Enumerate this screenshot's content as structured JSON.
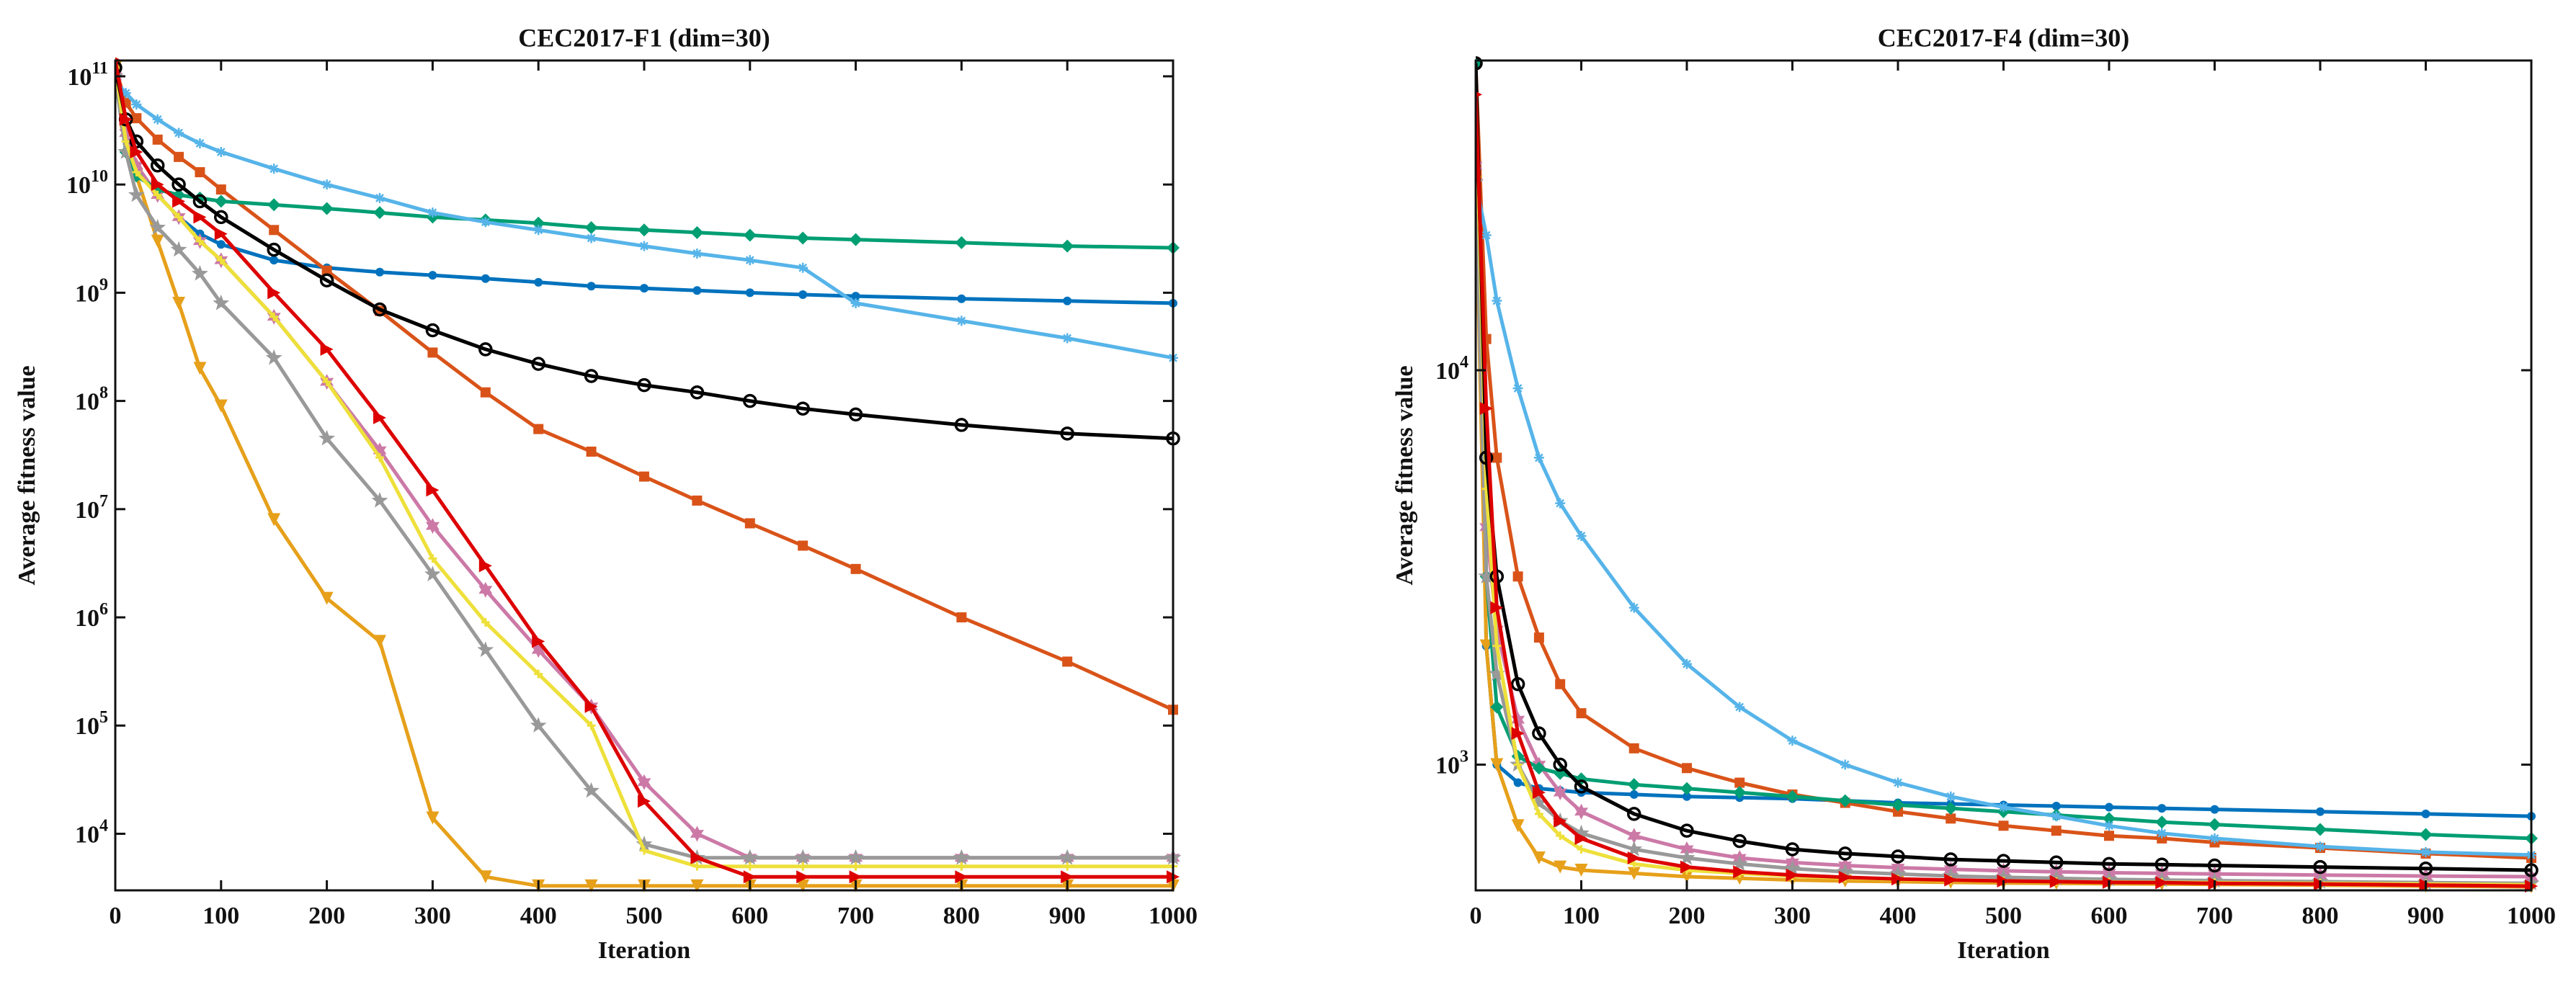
{
  "chart_data": [
    {
      "type": "line",
      "title": "CEC2017-F1 (dim=30)",
      "xlabel": "Iteration",
      "ylabel": "Average fitness value",
      "log_y": true,
      "x": [
        0,
        10,
        20,
        40,
        60,
        80,
        100,
        150,
        200,
        250,
        300,
        350,
        400,
        450,
        500,
        550,
        600,
        650,
        700,
        800,
        900,
        1000
      ],
      "xlim": [
        0,
        1000
      ],
      "xticks": [
        0,
        100,
        200,
        300,
        400,
        500,
        600,
        700,
        800,
        900,
        1000
      ],
      "ylim": [
        3000,
        140000000000
      ],
      "yticks": [
        {
          "value": 10000,
          "label": "10^4"
        },
        {
          "value": 100000,
          "label": "10^5"
        },
        {
          "value": 1000000,
          "label": "10^6"
        },
        {
          "value": 10000000,
          "label": "10^7"
        },
        {
          "value": 100000000,
          "label": "10^8"
        },
        {
          "value": 1000000000,
          "label": "10^9"
        },
        {
          "value": 10000000000,
          "label": "10^10"
        },
        {
          "value": 100000000000,
          "label": "10^11"
        }
      ],
      "series": [
        {
          "color": "#0072BD",
          "marker": "dot",
          "values": [
            120000000000.0,
            30000000000.0,
            15000000000.0,
            8000000000.0,
            5000000000.0,
            3500000000.0,
            2800000000.0,
            2000000000.0,
            1700000000.0,
            1550000000.0,
            1450000000.0,
            1350000000.0,
            1250000000.0,
            1150000000.0,
            1100000000.0,
            1050000000.0,
            1000000000.0,
            960000000.0,
            930000000.0,
            880000000.0,
            840000000.0,
            800000000.0
          ]
        },
        {
          "color": "#D95319",
          "marker": "square",
          "values": [
            120000000000.0,
            57000000000.0,
            41000000000.0,
            26000000000.0,
            18000000000.0,
            13000000000.0,
            9000000000.0,
            3800000000.0,
            1600000000.0,
            680000000.0,
            280000000.0,
            120000000.0,
            55000000.0,
            34000000.0,
            20000000.0,
            12000000.0,
            7400000.0,
            4600000.0,
            2800000.0,
            1000000.0,
            390000.0,
            140000.0
          ]
        },
        {
          "color": "#E6A01A",
          "marker": "triangle-down",
          "values": [
            120000000000.0,
            30000000000.0,
            12000000000.0,
            3000000000.0,
            800000000.0,
            200000000.0,
            90000000.0,
            8000000.0,
            1500000.0,
            600000.0,
            14000.0,
            4000,
            3300,
            3300,
            3300,
            3300,
            3300,
            3300,
            3300,
            3300,
            3300,
            3300
          ]
        },
        {
          "color": "#CC79A7",
          "marker": "hexagram",
          "values": [
            100000000000.0,
            30000000000.0,
            15000000000.0,
            8000000000.0,
            5000000000.0,
            3000000000.0,
            2000000000.0,
            600000000.0,
            150000000.0,
            35000000.0,
            7000000.0,
            1800000.0,
            500000.0,
            150000.0,
            30000.0,
            10000.0,
            6000,
            6000,
            6000,
            6000,
            6000,
            6000
          ]
        },
        {
          "color": "#009E73",
          "marker": "diamond",
          "values": [
            100000000000.0,
            20000000000.0,
            12000000000.0,
            9000000000.0,
            8000000000.0,
            7500000000.0,
            7000000000.0,
            6500000000.0,
            6000000000.0,
            5500000000.0,
            5000000000.0,
            4700000000.0,
            4400000000.0,
            4000000000.0,
            3800000000.0,
            3600000000.0,
            3400000000.0,
            3200000000.0,
            3100000000.0,
            2900000000.0,
            2700000000.0,
            2600000000.0
          ]
        },
        {
          "color": "#56B4E9",
          "marker": "asterisk",
          "values": [
            90000000000.0,
            70000000000.0,
            55000000000.0,
            40000000000.0,
            30000000000.0,
            24000000000.0,
            20000000000.0,
            14000000000.0,
            10000000000.0,
            7500000000.0,
            5500000000.0,
            4500000000.0,
            3800000000.0,
            3200000000.0,
            2700000000.0,
            2300000000.0,
            2000000000.0,
            1700000000.0,
            800000000.0,
            550000000.0,
            380000000.0,
            250000000.0
          ]
        },
        {
          "color": "#999999",
          "marker": "pentagram",
          "values": [
            100000000000.0,
            20000000000.0,
            8000000000.0,
            4000000000.0,
            2500000000.0,
            1500000000.0,
            800000000.0,
            250000000.0,
            45000000.0,
            12000000.0,
            2500000.0,
            500000.0,
            100000.0,
            25000.0,
            8000,
            6000,
            6000,
            6000,
            6000,
            6000,
            6000,
            6000
          ]
        },
        {
          "color": "#EEE03A",
          "marker": "plus",
          "values": [
            120000000000.0,
            25000000000.0,
            13000000000.0,
            8000000000.0,
            5000000000.0,
            3000000000.0,
            2000000000.0,
            600000000.0,
            150000000.0,
            30000000.0,
            3500000.0,
            900000.0,
            300000.0,
            100000.0,
            7000,
            5000,
            5000,
            5000,
            5000,
            5000,
            5000,
            5000
          ]
        },
        {
          "color": "#000000",
          "marker": "circle",
          "values": [
            120000000000.0,
            40000000000.0,
            25000000000.0,
            15000000000.0,
            10000000000.0,
            7000000000.0,
            5000000000.0,
            2500000000.0,
            1300000000.0,
            700000000.0,
            450000000.0,
            300000000.0,
            220000000.0,
            170000000.0,
            140000000.0,
            120000000.0,
            100000000.0,
            85000000.0,
            75000000.0,
            60000000.0,
            50000000.0,
            45000000.0
          ]
        },
        {
          "color": "#DD0000",
          "marker": "triangle-right",
          "values": [
            140000000000.0,
            40000000000.0,
            20000000000.0,
            10000000000.0,
            7000000000.0,
            5000000000.0,
            3500000000.0,
            1000000000.0,
            300000000.0,
            70000000.0,
            15000000.0,
            3000000.0,
            600000.0,
            150000.0,
            20000.0,
            6000,
            4000,
            4000,
            4000,
            4000,
            4000,
            4000
          ]
        }
      ]
    },
    {
      "type": "line",
      "title": "CEC2017-F4 (dim=30)",
      "xlabel": "Iteration",
      "ylabel": "Average fitness value",
      "log_y": true,
      "x": [
        0,
        10,
        20,
        40,
        60,
        80,
        100,
        150,
        200,
        250,
        300,
        350,
        400,
        450,
        500,
        550,
        600,
        650,
        700,
        800,
        900,
        1000
      ],
      "xlim": [
        0,
        1000
      ],
      "xticks": [
        0,
        100,
        200,
        300,
        400,
        500,
        600,
        700,
        800,
        900,
        1000
      ],
      "ylim": [
        480,
        61000
      ],
      "yticks": [
        {
          "value": 1000,
          "label": "10^3"
        },
        {
          "value": 10000,
          "label": "10^4"
        }
      ],
      "series": [
        {
          "color": "#0072BD",
          "marker": "dot",
          "values": [
            60000,
            2000,
            1000,
            900,
            870,
            860,
            850,
            840,
            830,
            825,
            820,
            810,
            800,
            795,
            790,
            785,
            780,
            775,
            770,
            760,
            750,
            740
          ]
        },
        {
          "color": "#D95319",
          "marker": "square",
          "values": [
            60000,
            12000,
            6000,
            3000,
            2100,
            1600,
            1350,
            1100,
            980,
            900,
            840,
            800,
            760,
            730,
            700,
            680,
            660,
            650,
            635,
            615,
            595,
            580
          ]
        },
        {
          "color": "#E6A01A",
          "marker": "triangle-down",
          "values": [
            30000,
            2000,
            1000,
            700,
            580,
            550,
            540,
            530,
            520,
            515,
            510,
            507,
            505,
            503,
            501,
            500,
            499,
            498,
            497,
            495,
            492,
            490
          ]
        },
        {
          "color": "#CC79A7",
          "marker": "hexagram",
          "values": [
            33000,
            4000,
            2200,
            1300,
            1000,
            850,
            760,
            660,
            610,
            580,
            565,
            555,
            548,
            543,
            538,
            535,
            532,
            530,
            528,
            525,
            522,
            520
          ]
        },
        {
          "color": "#009E73",
          "marker": "diamond",
          "values": [
            60000,
            3000,
            1400,
            1050,
            980,
            950,
            920,
            890,
            870,
            850,
            830,
            810,
            790,
            775,
            760,
            745,
            730,
            715,
            705,
            685,
            665,
            650
          ]
        },
        {
          "color": "#56B4E9",
          "marker": "asterisk",
          "values": [
            30000,
            22000,
            15000,
            9000,
            6000,
            4600,
            3800,
            2500,
            1800,
            1400,
            1150,
            1000,
            900,
            830,
            780,
            740,
            700,
            670,
            650,
            620,
            600,
            590
          ]
        },
        {
          "color": "#999999",
          "marker": "pentagram",
          "values": [
            30000,
            3000,
            1700,
            1000,
            800,
            720,
            670,
            610,
            580,
            560,
            545,
            535,
            528,
            522,
            518,
            515,
            512,
            510,
            508,
            505,
            502,
            500
          ]
        },
        {
          "color": "#EEE03A",
          "marker": "plus",
          "values": [
            50000,
            5000,
            2000,
            1000,
            750,
            660,
            610,
            560,
            540,
            530,
            522,
            516,
            512,
            509,
            507,
            505,
            504,
            503,
            502,
            500,
            498,
            496
          ]
        },
        {
          "color": "#000000",
          "marker": "circle",
          "values": [
            60000,
            6000,
            3000,
            1600,
            1200,
            1000,
            880,
            750,
            680,
            640,
            610,
            595,
            585,
            575,
            570,
            565,
            560,
            558,
            555,
            550,
            545,
            540
          ]
        },
        {
          "color": "#DD0000",
          "marker": "triangle-right",
          "values": [
            50000,
            8000,
            2500,
            1200,
            850,
            720,
            650,
            580,
            550,
            535,
            525,
            518,
            513,
            510,
            507,
            505,
            503,
            502,
            500,
            498,
            495,
            492
          ]
        }
      ]
    }
  ]
}
